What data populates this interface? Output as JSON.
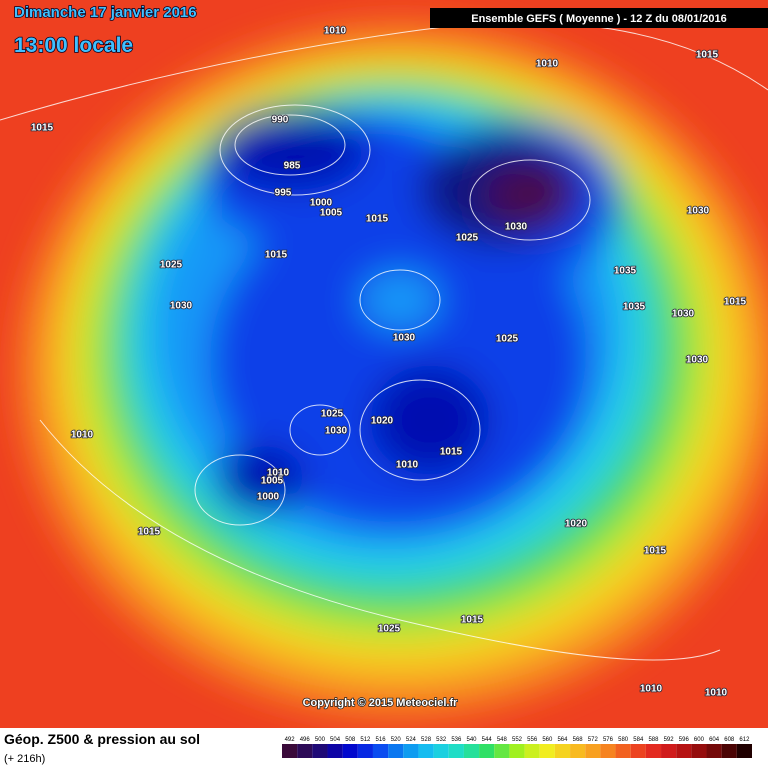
{
  "header": {
    "date": "Dimanche 17 janvier 2016",
    "time": "13:00 locale",
    "model": "Ensemble GEFS  ( Moyenne )  -  12 Z du 08/01/2016"
  },
  "isobar_labels": [
    "1010",
    "1010",
    "1015",
    "1015",
    "990",
    "985",
    "995",
    "1000",
    "1005",
    "1015",
    "1025",
    "1030",
    "1030",
    "1025",
    "1015",
    "1035",
    "1035",
    "1015",
    "1030",
    "1030",
    "1030",
    "1025",
    "1030",
    "1025",
    "1030",
    "1020",
    "1015",
    "1010",
    "1010",
    "1010",
    "1005",
    "1000",
    "1015",
    "1020",
    "1015",
    "1025",
    "1015",
    "1010",
    "1010"
  ],
  "copyright": "Copyright © 2015 Meteociel.fr",
  "footer": {
    "title": "Géop. Z500 & pression au sol",
    "lead": "(+ 216h)"
  },
  "colorbar_labels": [
    "492",
    "496",
    "500",
    "504",
    "508",
    "512",
    "516",
    "520",
    "524",
    "528",
    "532",
    "536",
    "540",
    "544",
    "548",
    "552",
    "556",
    "560",
    "564",
    "568",
    "572",
    "576",
    "580",
    "584",
    "588",
    "592",
    "596",
    "600",
    "604",
    "608",
    "612"
  ]
}
